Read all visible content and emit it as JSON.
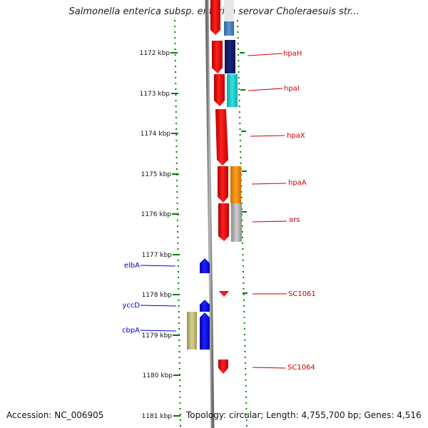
{
  "title": "Salmonella enterica subsp. enterica serovar Choleraesuis str...",
  "footer": {
    "accession": "Accession: NC_006905",
    "topology": "Topology: circular; Length: 4,755,700 bp; Genes: 4,516"
  },
  "map": {
    "unit": "kbp",
    "ticks": [
      "1172 kbp",
      "1173 kbp",
      "1174 kbp",
      "1175 kbp",
      "1176 kbp",
      "1177 kbp",
      "1178 kbp",
      "1179 kbp",
      "1180 kbp",
      "1181 kbp"
    ],
    "right_labels": [
      "hpaH",
      "hpaI",
      "hpaX",
      "hpaA",
      "ars",
      "SC1061",
      "SC1064"
    ],
    "left_labels": [
      "elbA",
      "yccD",
      "cbpA"
    ],
    "colors": {
      "forward_strand": "#ff0000",
      "reverse_strand": "#0000ff",
      "right_label": "#cc0000",
      "left_label": "#0000cc",
      "tick": "#008000",
      "backbone": "#888888",
      "hpaH_partner": "#1a237e",
      "hpaI_partner": "#22d3d3",
      "hpaA_partner": "#ff8c00",
      "ars_partner": "#aaaaaa",
      "top_partner": "#4682b4",
      "cbpA_partner": "#bdb76b"
    }
  }
}
